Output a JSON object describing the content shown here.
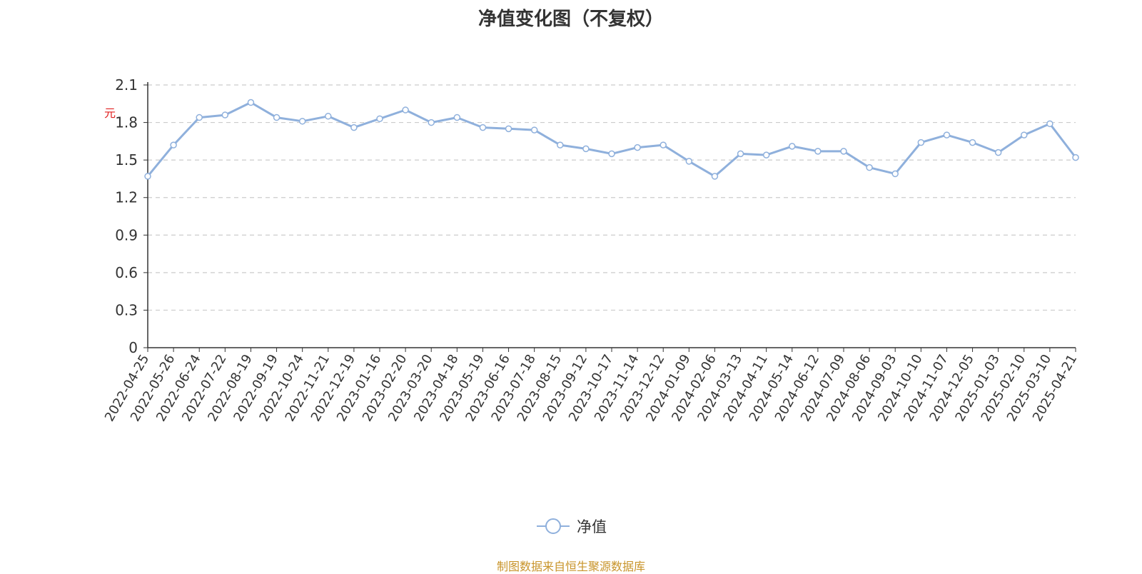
{
  "title": "净值变化图（不复权）",
  "unit_label": "元",
  "source": "制图数据来自恒生聚源数据库",
  "legend": {
    "series_name": "净值"
  },
  "colors": {
    "line": "#8fb0dc",
    "axis": "#333333",
    "grid": "#cccccc",
    "source": "#c8942a",
    "unit": "#e02020"
  },
  "chart_data": {
    "type": "line",
    "title": "净值变化图（不复权）",
    "ylabel": "元",
    "xlabel": "",
    "ylim": [
      0,
      2.1
    ],
    "yticks": [
      0,
      0.3,
      0.6,
      0.9,
      1.2,
      1.5,
      1.8,
      2.1
    ],
    "grid": true,
    "legend_position": "bottom-center",
    "x_ticks": [
      "2022-04-25",
      "2022-05-26",
      "2022-06-24",
      "2022-07-22",
      "2022-08-19",
      "2022-09-19",
      "2022-10-24",
      "2022-11-21",
      "2022-12-19",
      "2023-01-16",
      "2023-02-20",
      "2023-03-20",
      "2023-04-18",
      "2023-05-19",
      "2023-06-16",
      "2023-07-18",
      "2023-08-15",
      "2023-09-12",
      "2023-10-17",
      "2023-11-14",
      "2023-12-12",
      "2024-01-09",
      "2024-02-06",
      "2024-03-13",
      "2024-04-11",
      "2024-05-14",
      "2024-06-12",
      "2024-07-09",
      "2024-08-06",
      "2024-09-03",
      "2024-10-10",
      "2024-11-07",
      "2024-12-05",
      "2025-01-03",
      "2025-02-10",
      "2025-03-10",
      "2025-04-21"
    ],
    "series": [
      {
        "name": "净值",
        "x": [
          "2022-04-25",
          "2022-05-26",
          "2022-06-24",
          "2022-07-22",
          "2022-08-19",
          "2022-09-19",
          "2022-10-24",
          "2022-11-21",
          "2022-12-19",
          "2023-01-16",
          "2023-02-20",
          "2023-03-20",
          "2023-04-18",
          "2023-05-19",
          "2023-06-16",
          "2023-07-18",
          "2023-08-15",
          "2023-09-12",
          "2023-10-17",
          "2023-11-14",
          "2023-12-12",
          "2024-01-09",
          "2024-02-06",
          "2024-03-13",
          "2024-04-11",
          "2024-05-14",
          "2024-06-12",
          "2024-07-09",
          "2024-08-06",
          "2024-09-03",
          "2024-10-10",
          "2024-11-07",
          "2024-12-05",
          "2025-01-03",
          "2025-02-10",
          "2025-03-10",
          "2025-04-21"
        ],
        "values": [
          1.37,
          1.62,
          1.84,
          1.86,
          1.96,
          1.84,
          1.81,
          1.85,
          1.76,
          1.83,
          1.9,
          1.8,
          1.84,
          1.76,
          1.75,
          1.74,
          1.62,
          1.59,
          1.55,
          1.6,
          1.62,
          1.49,
          1.37,
          1.55,
          1.54,
          1.61,
          1.57,
          1.57,
          1.44,
          1.39,
          1.64,
          1.7,
          1.64,
          1.56,
          1.7,
          1.79,
          1.52
        ]
      }
    ]
  }
}
